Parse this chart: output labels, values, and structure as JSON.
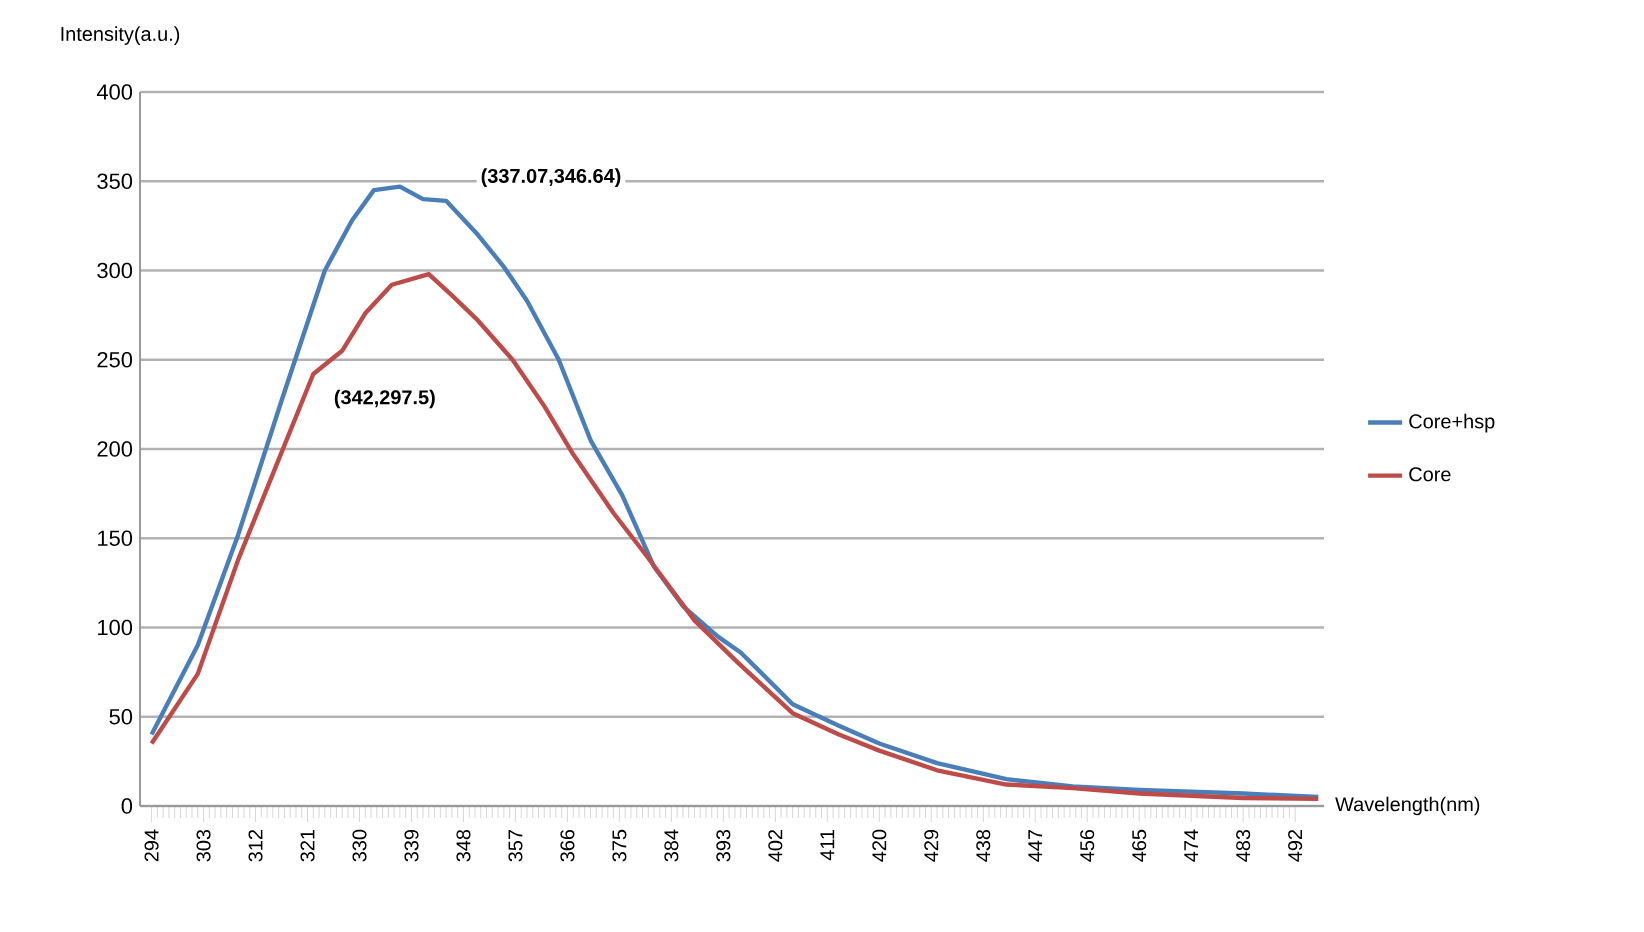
{
  "chart_data": {
    "type": "line",
    "xlabel": "Wavelength(nm)",
    "ylabel": "Intensity(a.u.)",
    "xlim": [
      292,
      497
    ],
    "ylim": [
      0,
      400
    ],
    "xticks": [
      294,
      303,
      312,
      321,
      330,
      339,
      348,
      357,
      366,
      375,
      384,
      393,
      402,
      411,
      420,
      429,
      438,
      447,
      456,
      465,
      474,
      483,
      492
    ],
    "yticks": [
      0,
      50,
      100,
      150,
      200,
      250,
      300,
      350,
      400
    ],
    "grid": "y",
    "legend": "right",
    "marker": "none",
    "line_style": "solid",
    "annotations": [
      "(337.07,346.64)",
      "(342,297.5)"
    ],
    "series": [
      {
        "name": "Core+hsp",
        "color": "#4a7ebb",
        "x": [
          294,
          302,
          309,
          316.5,
          324,
          328.7,
          332.5,
          337,
          341,
          345,
          350.5,
          355,
          359,
          364.5,
          370,
          375.5,
          381,
          386,
          392,
          396,
          405,
          413,
          420,
          430,
          442,
          453.5,
          465,
          483,
          496
        ],
        "values": [
          40,
          90,
          152,
          227,
          300,
          328,
          345,
          347,
          340,
          339,
          320,
          302,
          283,
          250,
          205,
          174,
          134,
          112,
          95,
          86,
          57,
          45,
          35,
          24,
          15,
          11,
          9,
          7,
          5
        ]
      },
      {
        "name": "Core",
        "color": "#be4b48",
        "x": [
          294,
          302,
          309,
          316,
          322,
          327,
          331,
          335.6,
          342,
          346,
          350.5,
          356.5,
          362,
          367,
          374,
          379.5,
          388,
          395.6,
          405,
          413,
          420,
          430,
          442,
          453.5,
          465,
          483,
          496
        ],
        "values": [
          35,
          74,
          138,
          194,
          242,
          255,
          276,
          292,
          298,
          286,
          272,
          250,
          224,
          197,
          164,
          141,
          104,
          80,
          52,
          40,
          31,
          20,
          12,
          10,
          7,
          4.5,
          4
        ]
      }
    ]
  }
}
